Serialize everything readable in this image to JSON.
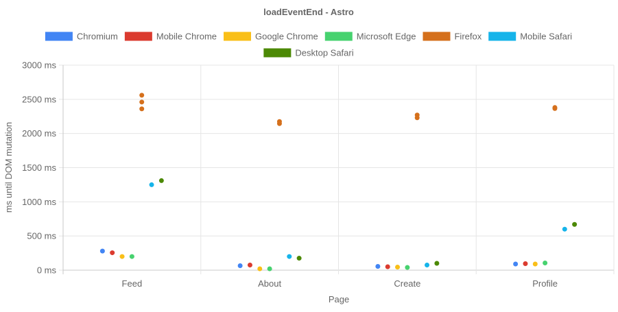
{
  "chart_data": {
    "type": "scatter",
    "title": "loadEventEnd - Astro",
    "xlabel": "Page",
    "ylabel": "ms until DOM mutation",
    "categories": [
      "Feed",
      "About",
      "Create",
      "Profile"
    ],
    "ylim": [
      0,
      3000
    ],
    "yticks": [
      0,
      500,
      1000,
      1500,
      2000,
      2500,
      3000
    ],
    "ytick_labels": [
      "0 ms",
      "500 ms",
      "1000 ms",
      "1500 ms",
      "2000 ms",
      "2500 ms",
      "3000 ms"
    ],
    "grid": true,
    "legend_position": "top",
    "series": [
      {
        "name": "Chromium",
        "color": "#4285f4",
        "points": [
          {
            "category": "Feed",
            "values": [
              280
            ]
          },
          {
            "category": "About",
            "values": [
              65
            ]
          },
          {
            "category": "Create",
            "values": [
              55
            ]
          },
          {
            "category": "Profile",
            "values": [
              90
            ]
          }
        ]
      },
      {
        "name": "Mobile Chrome",
        "color": "#db3b2f",
        "points": [
          {
            "category": "Feed",
            "values": [
              255
            ]
          },
          {
            "category": "About",
            "values": [
              75
            ]
          },
          {
            "category": "Create",
            "values": [
              50
            ]
          },
          {
            "category": "Profile",
            "values": [
              95
            ]
          }
        ]
      },
      {
        "name": "Google Chrome",
        "color": "#f9bf18",
        "points": [
          {
            "category": "Feed",
            "values": [
              200
            ]
          },
          {
            "category": "About",
            "values": [
              20
            ]
          },
          {
            "category": "Create",
            "values": [
              45
            ]
          },
          {
            "category": "Profile",
            "values": [
              90
            ]
          }
        ]
      },
      {
        "name": "Microsoft Edge",
        "color": "#47d26f",
        "points": [
          {
            "category": "Feed",
            "values": [
              200
            ]
          },
          {
            "category": "About",
            "values": [
              20
            ]
          },
          {
            "category": "Create",
            "values": [
              40
            ]
          },
          {
            "category": "Profile",
            "values": [
              105
            ]
          }
        ]
      },
      {
        "name": "Firefox",
        "color": "#d5701c",
        "points": [
          {
            "category": "Feed",
            "values": [
              2560,
              2460,
              2360
            ]
          },
          {
            "category": "About",
            "values": [
              2175,
              2145
            ]
          },
          {
            "category": "Create",
            "values": [
              2270,
              2230
            ]
          },
          {
            "category": "Profile",
            "values": [
              2380,
              2365
            ]
          }
        ]
      },
      {
        "name": "Mobile Safari",
        "color": "#16b4ea",
        "points": [
          {
            "category": "Feed",
            "values": [
              1250
            ]
          },
          {
            "category": "About",
            "values": [
              200
            ]
          },
          {
            "category": "Create",
            "values": [
              75
            ]
          },
          {
            "category": "Profile",
            "values": [
              600
            ]
          }
        ]
      },
      {
        "name": "Desktop Safari",
        "color": "#4c8905",
        "points": [
          {
            "category": "Feed",
            "values": [
              1310
            ]
          },
          {
            "category": "About",
            "values": [
              175
            ]
          },
          {
            "category": "Create",
            "values": [
              100
            ]
          },
          {
            "category": "Profile",
            "values": [
              670
            ]
          }
        ]
      }
    ]
  }
}
